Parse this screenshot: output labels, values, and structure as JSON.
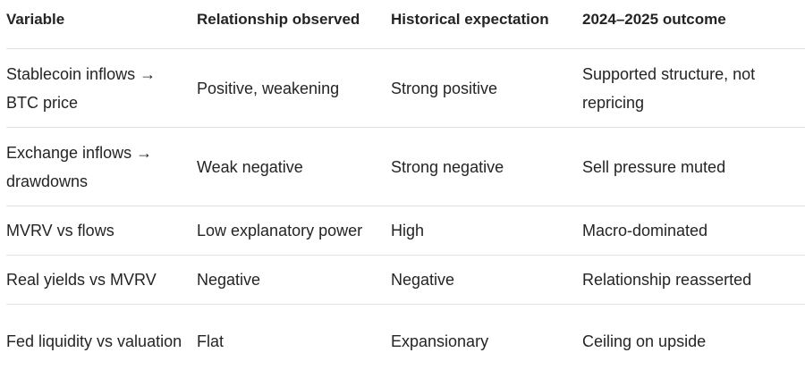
{
  "table": {
    "header": [
      "Variable",
      "Relationship observed",
      "Historical expectation",
      "2024–2025 outcome"
    ],
    "rows": [
      [
        "Stablecoin inflows → BTC price",
        "Positive, weakening",
        "Strong positive",
        "Supported structure, not repricing"
      ],
      [
        "Exchange inflows → drawdowns",
        "Weak negative",
        "Strong negative",
        "Sell pressure muted"
      ],
      [
        "MVRV vs flows",
        "Low explanatory power",
        "High",
        "Macro-dominated"
      ],
      [
        "Real yields vs MVRV",
        "Negative",
        "Negative",
        "Relationship reasserted"
      ],
      [
        "Fed liquidity vs valuation",
        "Flat",
        "Expansionary",
        "Ceiling on upside"
      ]
    ]
  }
}
